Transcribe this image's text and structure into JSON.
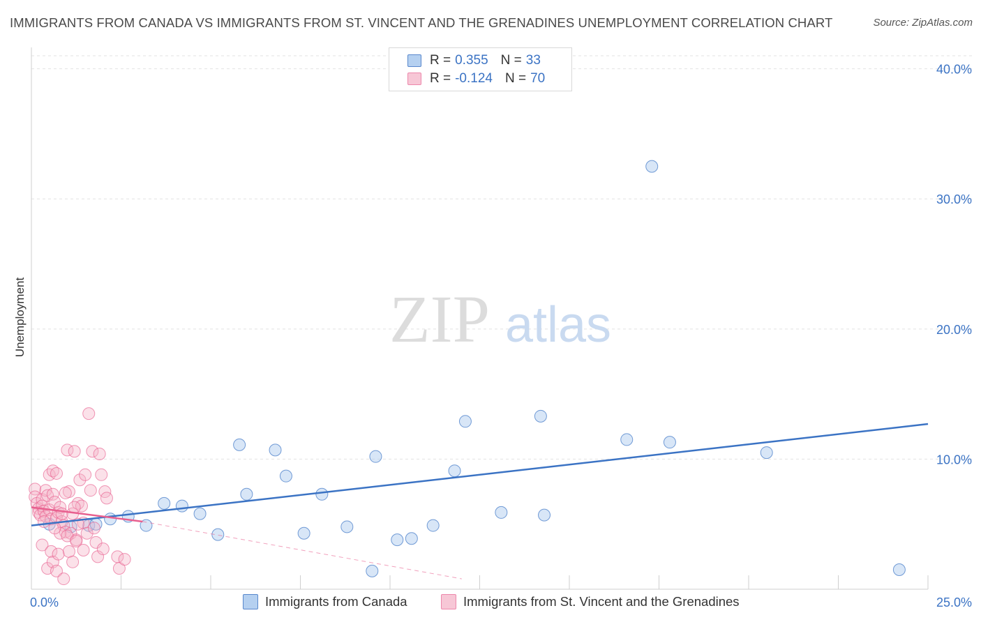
{
  "title": "IMMIGRANTS FROM CANADA VS IMMIGRANTS FROM ST. VINCENT AND THE GRENADINES UNEMPLOYMENT CORRELATION CHART",
  "source": "Source: ZipAtlas.com",
  "watermark": {
    "zip": "ZIP",
    "atlas": "atlas"
  },
  "colors": {
    "blue": "#3b73c4",
    "blue_fill": "#a9c8ee",
    "pink": "#e8608f",
    "pink_fill": "#f5b5c9"
  },
  "legend": {
    "rows": [
      {
        "r_label": "R =",
        "r_value": "0.355",
        "n_label": "N =",
        "n_value": "33"
      },
      {
        "r_label": "R =",
        "r_value": "-0.124",
        "n_label": "N =",
        "n_value": "70"
      }
    ]
  },
  "bottom_legend": {
    "series1": "Immigrants from Canada",
    "series2": "Immigrants from St. Vincent and the Grenadines"
  },
  "chart_data": {
    "type": "scatter",
    "title": "IMMIGRANTS FROM CANADA VS IMMIGRANTS FROM ST. VINCENT AND THE GRENADINES UNEMPLOYMENT CORRELATION CHART",
    "xlabel": "",
    "ylabel": "Unemployment",
    "xlim": [
      0,
      25
    ],
    "ylim": [
      0,
      41
    ],
    "x_tick_labels": [
      "0.0%",
      "25.0%"
    ],
    "y_ticks": [
      10,
      20,
      30,
      40
    ],
    "y_tick_labels": [
      "10.0%",
      "20.0%",
      "30.0%",
      "40.0%"
    ],
    "grid": true,
    "series": [
      {
        "name": "Immigrants from Canada",
        "r": 0.355,
        "n": 33,
        "trend": {
          "x": [
            0,
            25
          ],
          "y": [
            4.9,
            12.7
          ]
        },
        "points": [
          [
            1.1,
            4.8
          ],
          [
            1.6,
            4.9
          ],
          [
            2.2,
            5.4
          ],
          [
            2.7,
            5.6
          ],
          [
            3.2,
            4.9
          ],
          [
            3.7,
            6.6
          ],
          [
            4.2,
            6.4
          ],
          [
            4.7,
            5.8
          ],
          [
            5.2,
            4.2
          ],
          [
            5.8,
            11.1
          ],
          [
            6.0,
            7.3
          ],
          [
            6.8,
            10.7
          ],
          [
            7.1,
            8.7
          ],
          [
            7.6,
            4.3
          ],
          [
            8.1,
            7.3
          ],
          [
            8.8,
            4.8
          ],
          [
            9.5,
            1.4
          ],
          [
            9.6,
            10.2
          ],
          [
            10.2,
            3.8
          ],
          [
            10.6,
            3.9
          ],
          [
            11.2,
            4.9
          ],
          [
            11.8,
            9.1
          ],
          [
            12.1,
            12.9
          ],
          [
            13.1,
            5.9
          ],
          [
            14.2,
            13.3
          ],
          [
            14.3,
            5.7
          ],
          [
            16.6,
            11.5
          ],
          [
            17.3,
            32.5
          ],
          [
            17.8,
            11.3
          ],
          [
            20.5,
            10.5
          ],
          [
            24.2,
            1.5
          ],
          [
            0.5,
            5.0
          ],
          [
            1.8,
            5.0
          ]
        ]
      },
      {
        "name": "Immigrants from St. Vincent and the Grenadines",
        "r": -0.124,
        "n": 70,
        "trend": {
          "x": [
            0,
            3.1
          ],
          "y": [
            6.3,
            5.2
          ]
        },
        "trend_dashed": {
          "x": [
            3.1,
            12.0
          ],
          "y": [
            5.2,
            0.8
          ]
        },
        "points": [
          [
            0.1,
            7.7
          ],
          [
            0.1,
            7.1
          ],
          [
            0.15,
            6.6
          ],
          [
            0.2,
            6.2
          ],
          [
            0.2,
            5.9
          ],
          [
            0.25,
            5.7
          ],
          [
            0.3,
            6.9
          ],
          [
            0.3,
            6.4
          ],
          [
            0.35,
            6.0
          ],
          [
            0.4,
            7.6
          ],
          [
            0.4,
            5.6
          ],
          [
            0.45,
            7.2
          ],
          [
            0.5,
            8.8
          ],
          [
            0.5,
            6.1
          ],
          [
            0.55,
            5.4
          ],
          [
            0.6,
            9.1
          ],
          [
            0.6,
            7.3
          ],
          [
            0.65,
            6.7
          ],
          [
            0.7,
            8.9
          ],
          [
            0.7,
            5.5
          ],
          [
            0.75,
            5.9
          ],
          [
            0.8,
            6.3
          ],
          [
            0.85,
            5.2
          ],
          [
            0.9,
            4.9
          ],
          [
            0.95,
            4.4
          ],
          [
            1.0,
            10.7
          ],
          [
            1.05,
            7.5
          ],
          [
            1.1,
            4.3
          ],
          [
            1.15,
            5.8
          ],
          [
            1.2,
            10.6
          ],
          [
            1.25,
            3.8
          ],
          [
            1.3,
            6.6
          ],
          [
            1.35,
            8.4
          ],
          [
            1.4,
            6.4
          ],
          [
            1.45,
            5.1
          ],
          [
            1.5,
            8.8
          ],
          [
            1.55,
            4.3
          ],
          [
            1.6,
            13.5
          ],
          [
            1.65,
            7.6
          ],
          [
            1.7,
            10.6
          ],
          [
            1.75,
            4.7
          ],
          [
            1.8,
            3.6
          ],
          [
            1.85,
            2.5
          ],
          [
            1.9,
            10.4
          ],
          [
            1.95,
            8.8
          ],
          [
            2.0,
            3.1
          ],
          [
            2.05,
            7.5
          ],
          [
            2.1,
            7.0
          ],
          [
            0.3,
            3.4
          ],
          [
            0.45,
            1.6
          ],
          [
            0.55,
            2.9
          ],
          [
            0.6,
            2.1
          ],
          [
            0.7,
            1.4
          ],
          [
            0.75,
            2.7
          ],
          [
            0.8,
            4.3
          ],
          [
            0.9,
            0.8
          ],
          [
            1.0,
            4.1
          ],
          [
            1.05,
            2.9
          ],
          [
            1.15,
            2.1
          ],
          [
            1.25,
            3.7
          ],
          [
            1.3,
            5.0
          ],
          [
            2.4,
            2.5
          ],
          [
            2.45,
            1.6
          ],
          [
            2.6,
            2.3
          ],
          [
            1.2,
            6.3
          ],
          [
            0.85,
            5.8
          ],
          [
            0.65,
            4.7
          ],
          [
            0.35,
            5.2
          ],
          [
            1.45,
            3.0
          ],
          [
            0.95,
            7.4
          ]
        ]
      }
    ]
  }
}
